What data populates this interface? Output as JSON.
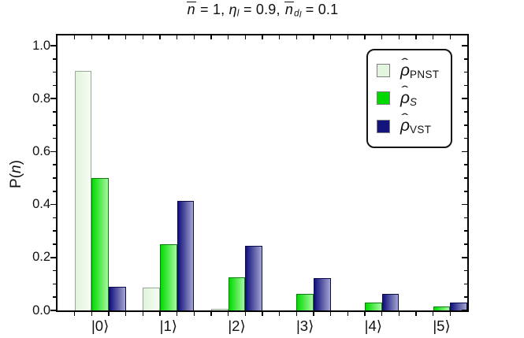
{
  "title_rich": {
    "segments": [
      {
        "t": "n",
        "it": true,
        "ov": true
      },
      {
        "t": " = 1, "
      },
      {
        "t": "η",
        "it": true
      },
      {
        "t": "l",
        "it": true,
        "sub": true
      },
      {
        "t": " = 0.9, "
      },
      {
        "t": "n",
        "it": true,
        "ov": true
      },
      {
        "t": "d",
        "it": true,
        "sub": true
      },
      {
        "t": "l",
        "it": true,
        "sub2": true
      },
      {
        "t": " = 0.1"
      }
    ]
  },
  "ylabel_rich": {
    "segments": [
      {
        "t": "P("
      },
      {
        "t": "n",
        "it": true
      },
      {
        "t": ")"
      }
    ]
  },
  "legend": {
    "items": [
      {
        "name": "rho-PNST",
        "label": [
          {
            "t": "ρ",
            "it": true,
            "hat": true
          },
          {
            "t": "PNST",
            "sub": true
          }
        ]
      },
      {
        "name": "rho-S",
        "label": [
          {
            "t": "ρ",
            "it": true,
            "hat": true
          },
          {
            "t": "S",
            "it": true,
            "sub": true
          }
        ]
      },
      {
        "name": "rho-VST",
        "label": [
          {
            "t": "ρ",
            "it": true,
            "hat": true
          },
          {
            "t": "VST",
            "sub": true
          }
        ]
      }
    ]
  },
  "chart_data": {
    "type": "bar",
    "title": "n̄ = 1, η_l = 0.9, n̄_{d_l} = 0.1",
    "xlabel": "",
    "ylabel": "P(n)",
    "categories": [
      "|0⟩",
      "|1⟩",
      "|2⟩",
      "|3⟩",
      "|4⟩",
      "|5⟩"
    ],
    "series": [
      {
        "name": "ρ̂_PNST",
        "values": [
          0.905,
          0.085,
          0.006,
          0.001,
          0.0,
          0.0
        ],
        "fill_left": "#e1f4db",
        "fill_right": "#f6fcf4",
        "edge": "#97a897",
        "legend_color": "#e3f5de"
      },
      {
        "name": "ρ̂_S",
        "values": [
          0.5,
          0.25,
          0.125,
          0.0625,
          0.031,
          0.016
        ],
        "fill_left": "#00dc00",
        "fill_right": "#a6f7a0",
        "edge": "#0f7a0f",
        "legend_color": "#00d800"
      },
      {
        "name": "ρ̂_VST",
        "values": [
          0.088,
          0.413,
          0.243,
          0.122,
          0.062,
          0.031
        ],
        "fill_left": "#10107d",
        "fill_right": "#a4a4d0",
        "edge": "#0b0b4e",
        "legend_color": "#14147e"
      }
    ],
    "ylim": [
      0,
      1.04
    ],
    "yticks_major": [
      0.0,
      0.2,
      0.4,
      0.6,
      0.8,
      1.0
    ],
    "ytick_labels": [
      "0.0",
      "0.2",
      "0.4",
      "0.6",
      "0.8",
      "1.0"
    ],
    "ytick_minor_step": 0.05,
    "grid": false,
    "legend_position": "upper right",
    "frame_color": "#000000",
    "text_color": "#111111"
  }
}
